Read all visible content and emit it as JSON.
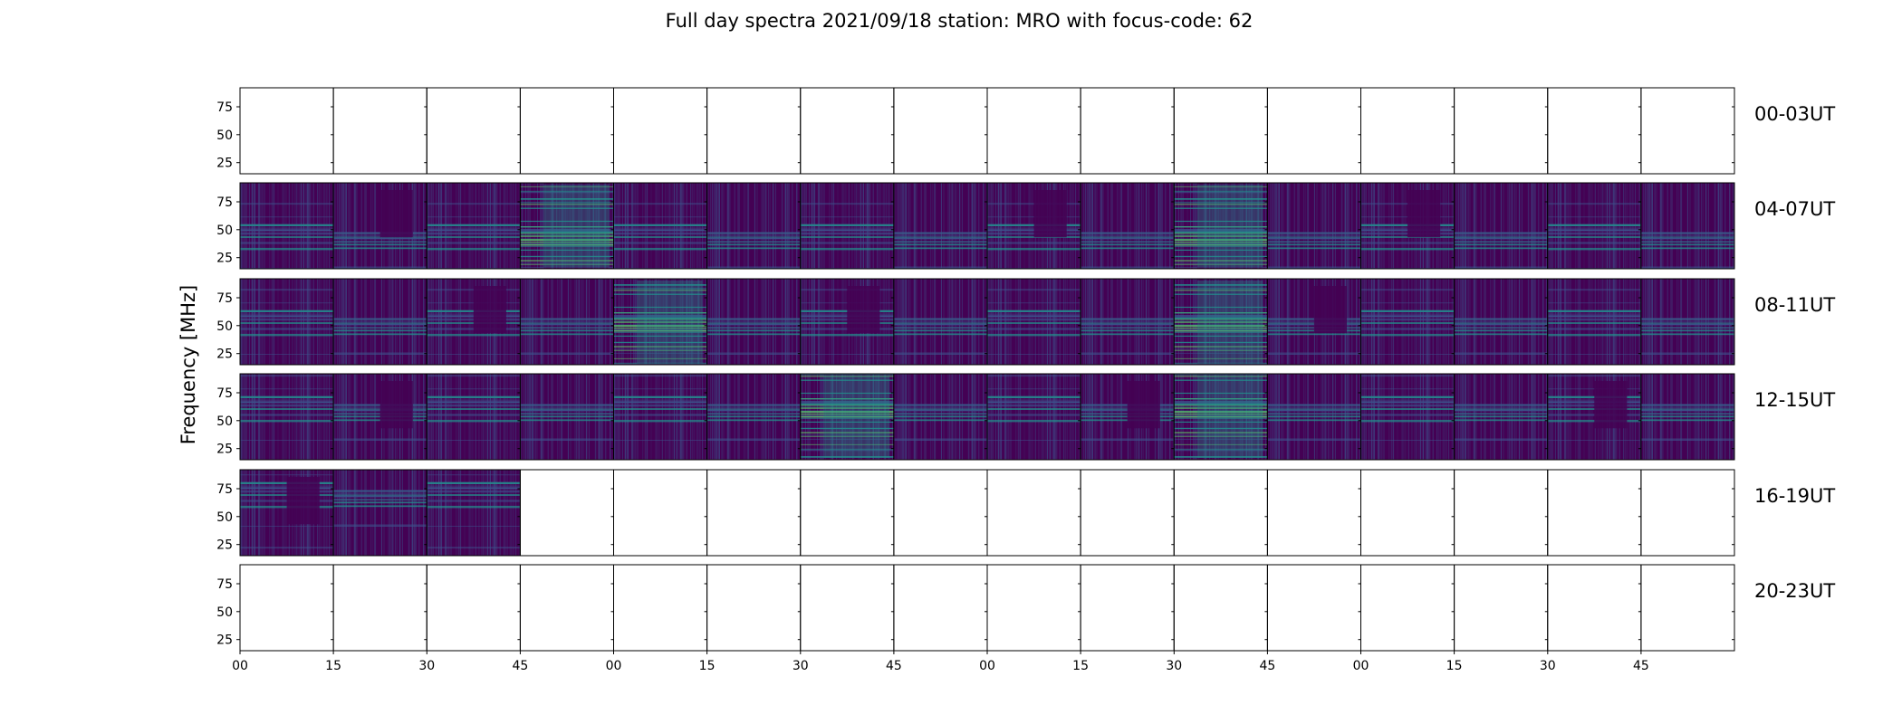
{
  "chart_data": {
    "type": "heatmap",
    "title": "Full day spectra 2021/09/18 station: MRO with focus-code: 62",
    "ylabel": "Frequency [MHz]",
    "xlabel": "",
    "y_ticks": [
      "25",
      "50",
      "75"
    ],
    "y_tick_values": [
      25,
      50,
      75
    ],
    "ylim": [
      15,
      92
    ],
    "x_tick_labels": [
      "00",
      "15",
      "30",
      "45",
      "00",
      "15",
      "30",
      "45",
      "00",
      "15",
      "30",
      "45",
      "00",
      "15",
      "30",
      "45"
    ],
    "panels_per_row": 16,
    "panel_minutes": 15,
    "colormap": "viridis",
    "rows": [
      {
        "label": "00-03UT",
        "filled_panels": 0
      },
      {
        "label": "04-07UT",
        "filled_panels": 16
      },
      {
        "label": "08-11UT",
        "filled_panels": 16
      },
      {
        "label": "12-15UT",
        "filled_panels": 16
      },
      {
        "label": "16-19UT",
        "filled_panels": 3
      },
      {
        "label": "20-23UT",
        "filled_panels": 0
      }
    ],
    "grid": false
  },
  "colors": {
    "background_low": "#440154",
    "mid_low": "#3b528b",
    "mid": "#21918c",
    "high": "#5ec962",
    "axis": "#000000"
  }
}
